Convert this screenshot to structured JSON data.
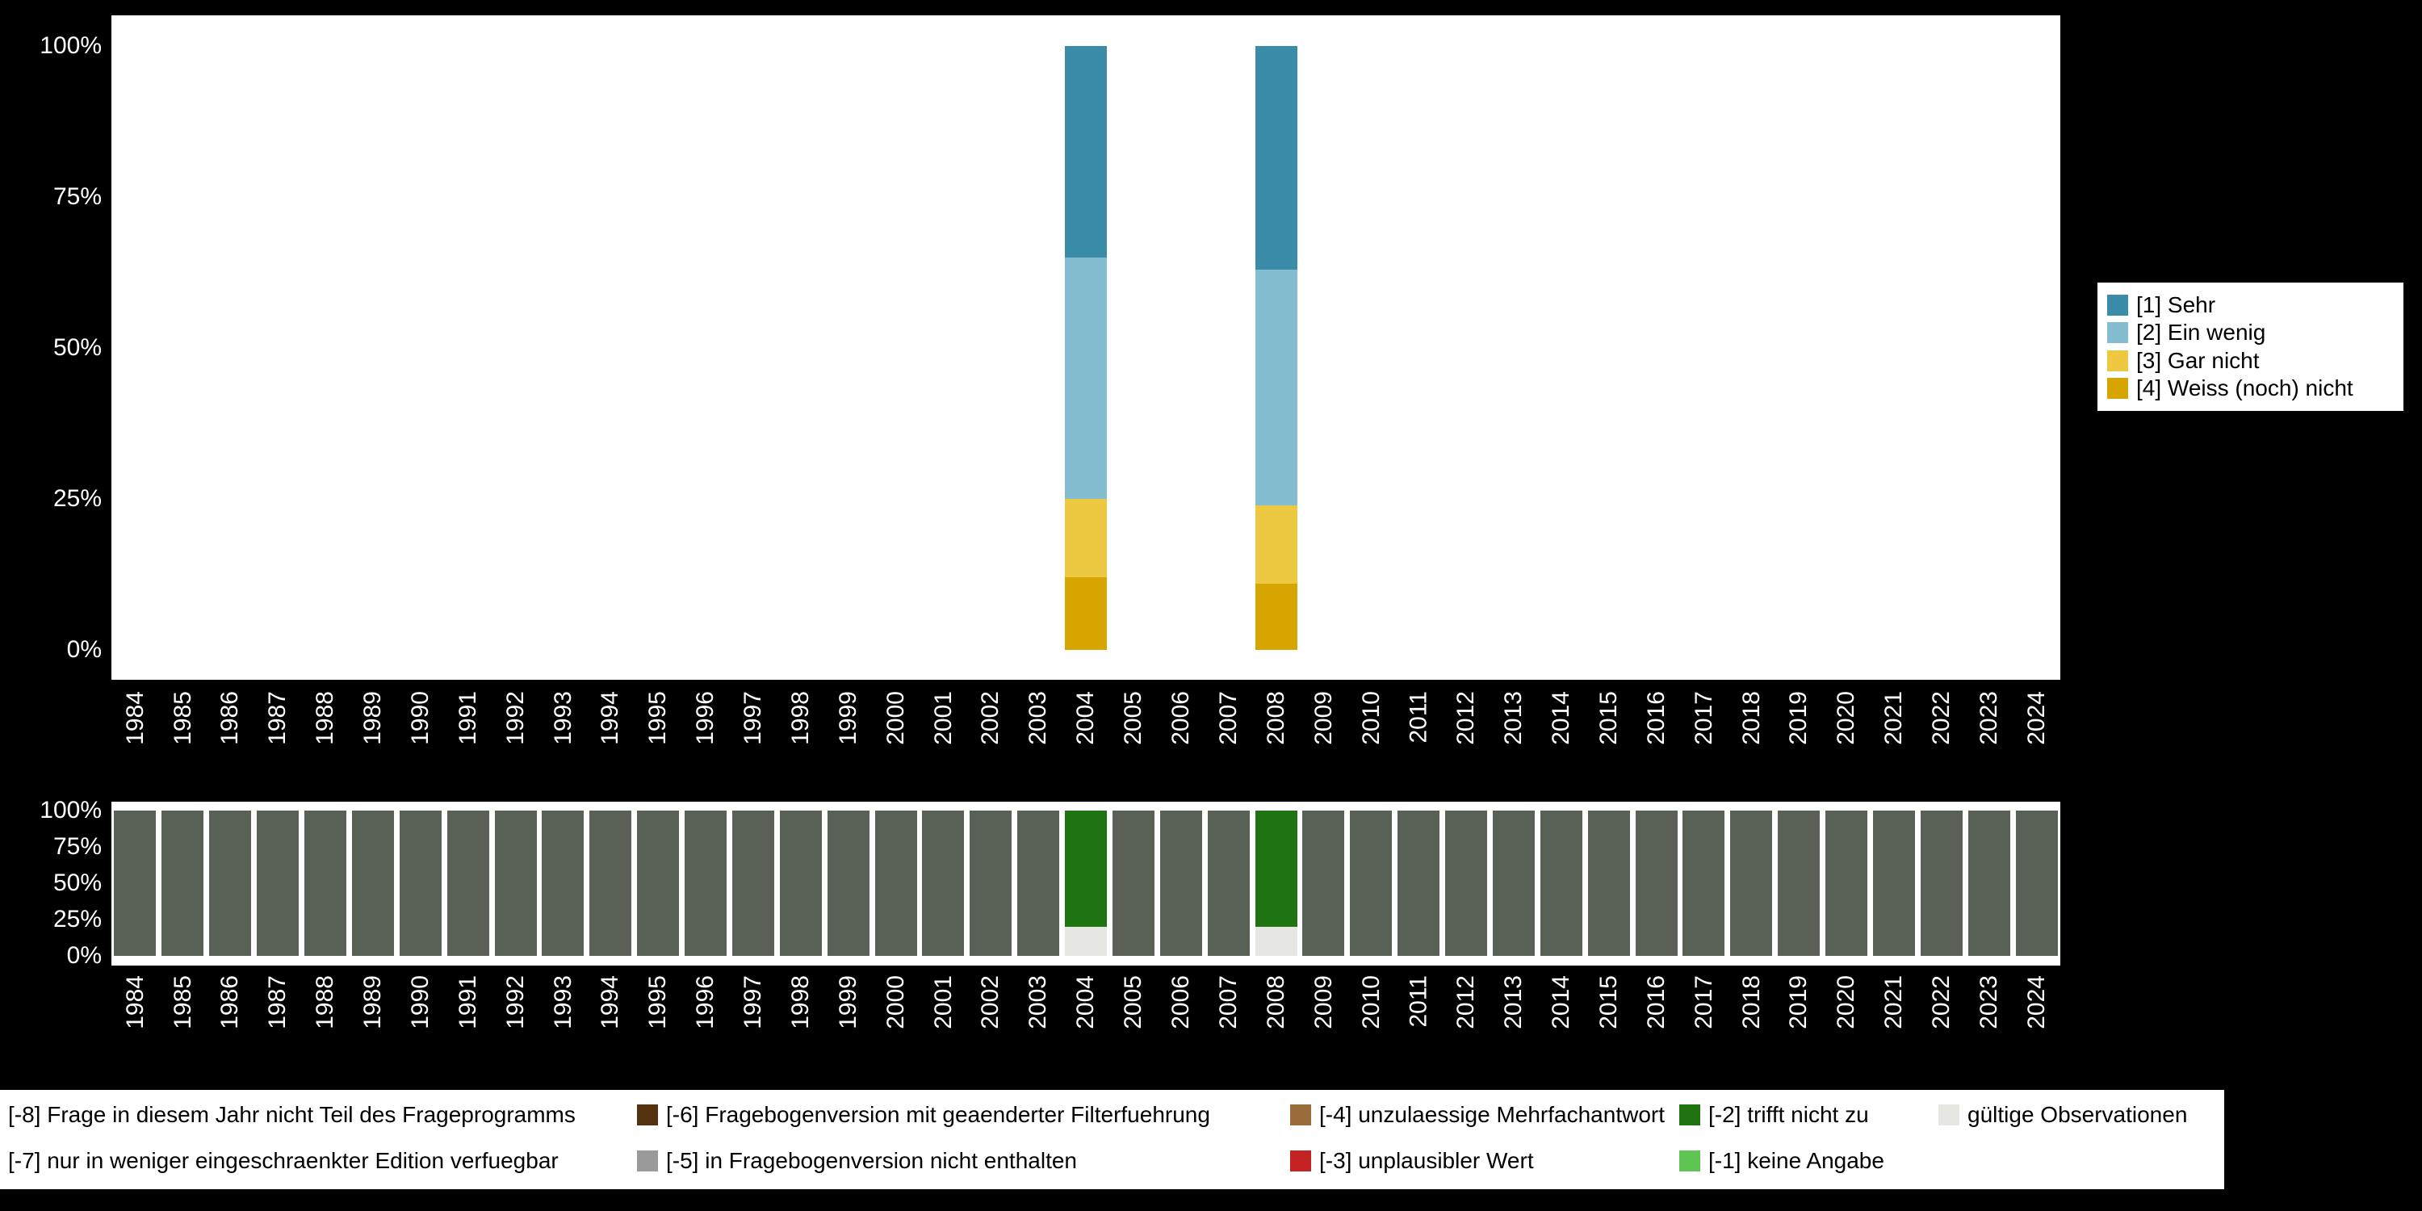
{
  "figure": {
    "background_color": "#000000",
    "panel_color": "#ffffff",
    "axis_text_color": "#ffffff"
  },
  "top_chart": {
    "y_axis_ticks": [
      "100%",
      "75%",
      "50%",
      "25%",
      "0%"
    ],
    "legend": [
      {
        "label": "[1] Sehr",
        "color": "#3a8ca8"
      },
      {
        "label": "[2] Ein wenig",
        "color": "#85bdd0"
      },
      {
        "label": "[3] Gar nicht",
        "color": "#ecc940"
      },
      {
        "label": "[4] Weiss (noch) nicht",
        "color": "#d6a500"
      }
    ]
  },
  "bottom_chart": {
    "y_axis_ticks": [
      "100%",
      "75%",
      "50%",
      "25%",
      "0%"
    ]
  },
  "missing_legend": {
    "rows": [
      [
        {
          "label": "[-8] Frage in diesem Jahr nicht Teil des Frageprogramms",
          "swatch": null
        },
        {
          "label": "[-6] Fragebogenversion mit geaenderter Filterfuehrung",
          "swatch": "#54320f"
        },
        {
          "label": "[-4] unzulaessige Mehrfachantwort",
          "swatch": "#9c6b3c"
        },
        {
          "label": "[-2] trifft nicht zu",
          "swatch": "#1f7310"
        },
        {
          "label": "gültige Observationen",
          "swatch": "#e6e6e2"
        }
      ],
      [
        {
          "label": "[-7] nur in weniger eingeschraenkter Edition verfuegbar",
          "swatch": null
        },
        {
          "label": "[-5] in Fragebogenversion nicht enthalten",
          "swatch": "#9a9a9a"
        },
        {
          "label": "[-3] unplausibler Wert",
          "swatch": "#c42323"
        },
        {
          "label": "[-1] keine Angabe",
          "swatch": "#5ec452"
        },
        null
      ]
    ]
  },
  "chart_data": [
    {
      "type": "bar",
      "stacked": true,
      "title": "",
      "xlabel": "",
      "ylabel": "",
      "ylim": [
        0,
        100
      ],
      "y_ticks": [
        "0%",
        "25%",
        "50%",
        "75%",
        "100%"
      ],
      "legend_position": "right",
      "grid": false,
      "segment_order": "bottom_to_top",
      "categories": [
        "1984",
        "1985",
        "1986",
        "1987",
        "1988",
        "1989",
        "1990",
        "1991",
        "1992",
        "1993",
        "1994",
        "1995",
        "1996",
        "1997",
        "1998",
        "1999",
        "2000",
        "2001",
        "2002",
        "2003",
        "2004",
        "2005",
        "2006",
        "2007",
        "2008",
        "2009",
        "2010",
        "2011",
        "2012",
        "2013",
        "2014",
        "2015",
        "2016",
        "2017",
        "2018",
        "2019",
        "2020",
        "2021",
        "2022",
        "2023",
        "2024"
      ],
      "values_by_year": {
        "2004": [
          {
            "label": "[4] Weiss (noch) nicht",
            "color": "#d6a500",
            "value": 12
          },
          {
            "label": "[3] Gar nicht",
            "color": "#ecc940",
            "value": 13
          },
          {
            "label": "[2] Ein wenig",
            "color": "#85bdd0",
            "value": 40
          },
          {
            "label": "[1] Sehr",
            "color": "#3a8ca8",
            "value": 35
          }
        ],
        "2008": [
          {
            "label": "[4] Weiss (noch) nicht",
            "color": "#d6a500",
            "value": 11
          },
          {
            "label": "[3] Gar nicht",
            "color": "#ecc940",
            "value": 13
          },
          {
            "label": "[2] Ein wenig",
            "color": "#85bdd0",
            "value": 39
          },
          {
            "label": "[1] Sehr",
            "color": "#3a8ca8",
            "value": 37
          }
        ]
      }
    },
    {
      "type": "bar",
      "stacked": true,
      "title": "",
      "xlabel": "",
      "ylabel": "",
      "ylim": [
        0,
        100
      ],
      "y_ticks": [
        "0%",
        "25%",
        "50%",
        "75%",
        "100%"
      ],
      "grid": false,
      "segment_order": "bottom_to_top",
      "categories": [
        "1984",
        "1985",
        "1986",
        "1987",
        "1988",
        "1989",
        "1990",
        "1991",
        "1992",
        "1993",
        "1994",
        "1995",
        "1996",
        "1997",
        "1998",
        "1999",
        "2000",
        "2001",
        "2002",
        "2003",
        "2004",
        "2005",
        "2006",
        "2007",
        "2008",
        "2009",
        "2010",
        "2011",
        "2012",
        "2013",
        "2014",
        "2015",
        "2016",
        "2017",
        "2018",
        "2019",
        "2020",
        "2021",
        "2022",
        "2023",
        "2024"
      ],
      "default_segments": [
        {
          "label": "[-8] Frage in diesem Jahr nicht Teil des Frageprogramms",
          "color": "#596157",
          "value": 100
        }
      ],
      "values_by_year": {
        "2004": [
          {
            "label": "gültige Observationen",
            "color": "#e6e6e2",
            "value": 20
          },
          {
            "label": "[-2] trifft nicht zu",
            "color": "#1f7310",
            "value": 80
          }
        ],
        "2008": [
          {
            "label": "gültige Observationen",
            "color": "#e6e6e2",
            "value": 20
          },
          {
            "label": "[-2] trifft nicht zu",
            "color": "#1f7310",
            "value": 80
          }
        ]
      }
    }
  ]
}
